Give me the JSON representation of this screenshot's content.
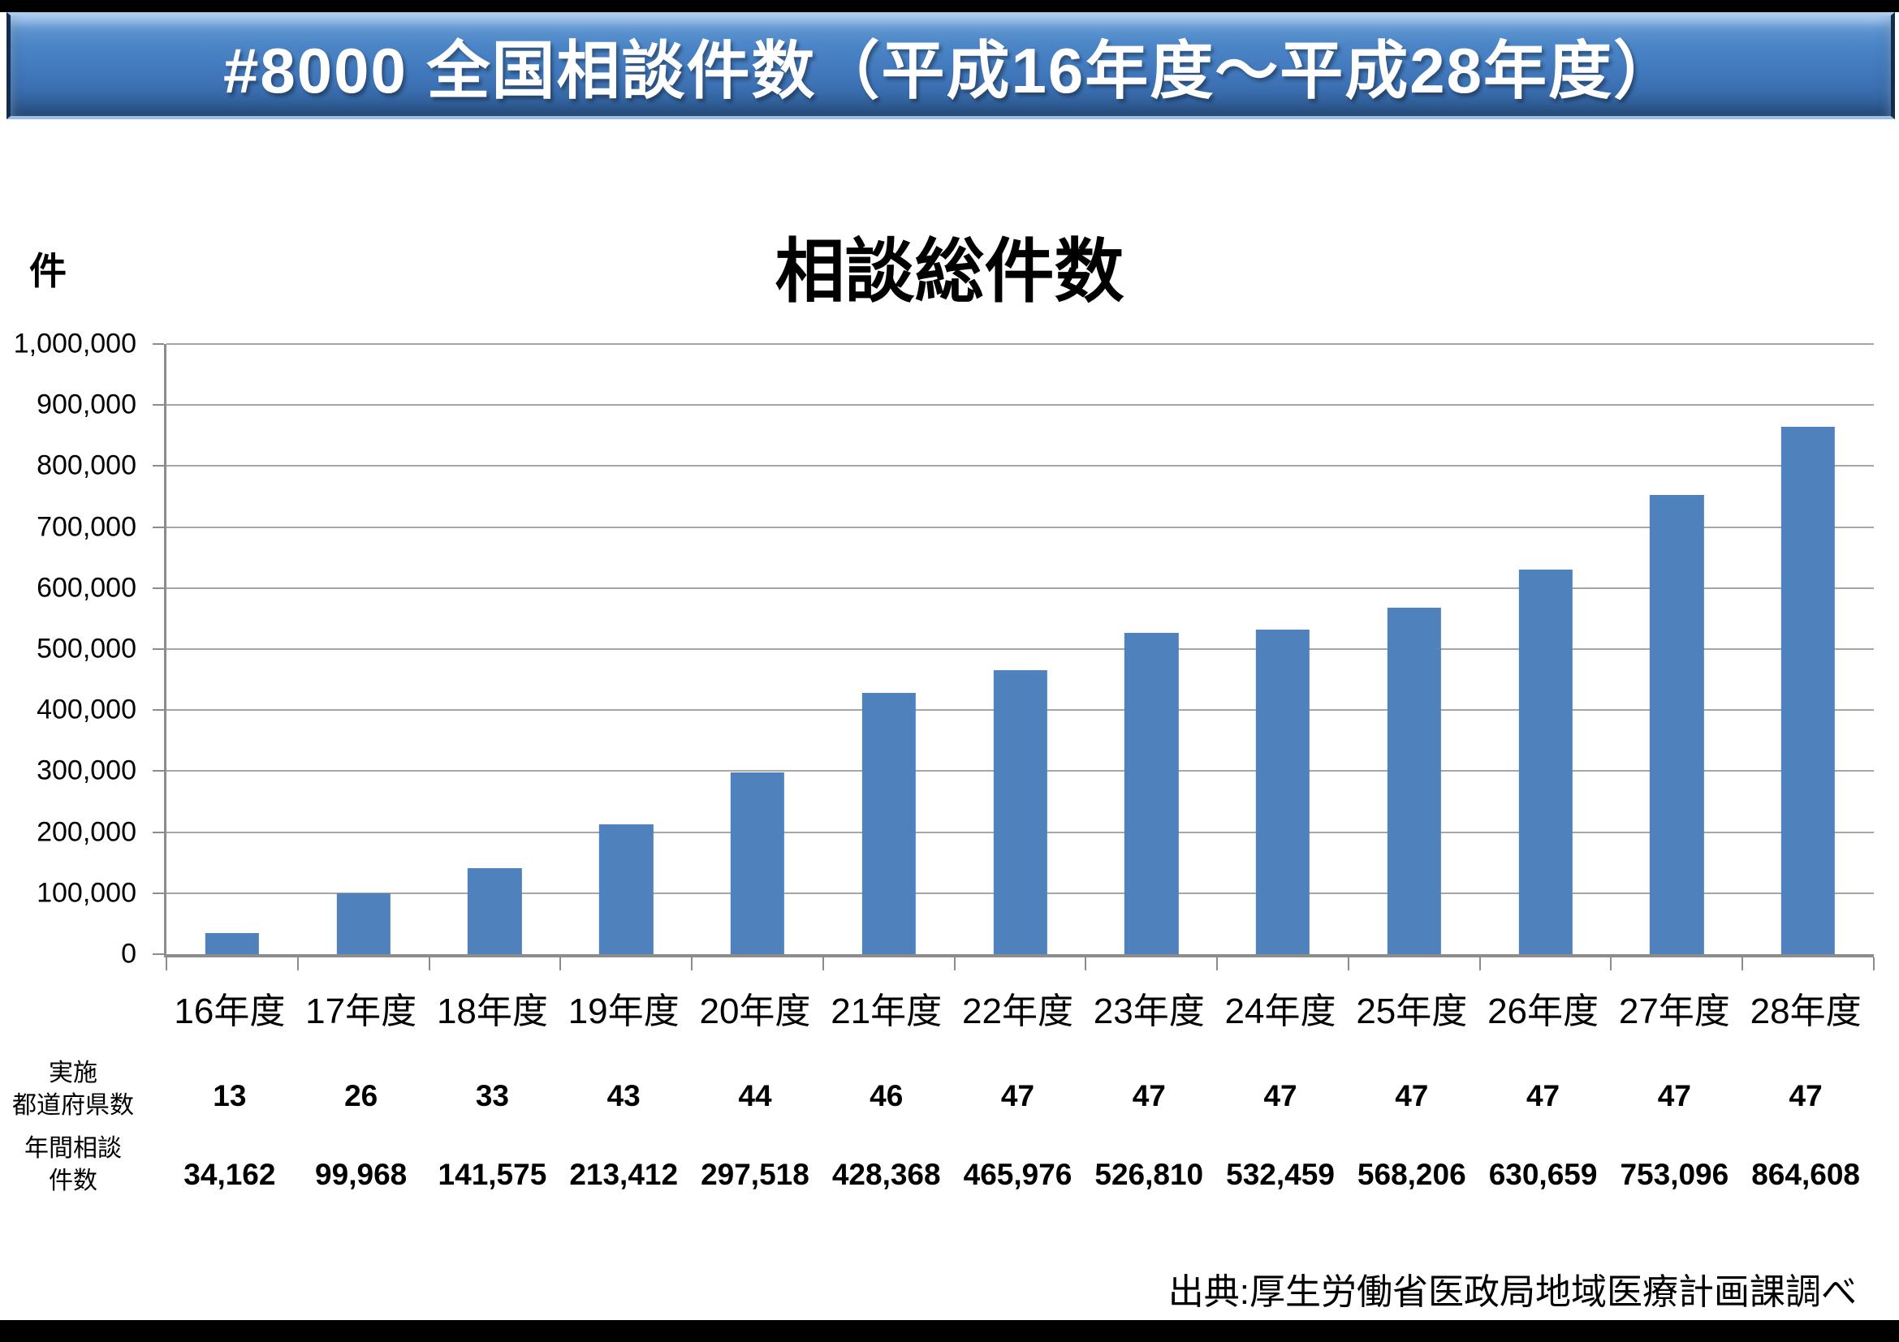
{
  "banner": {
    "title": "#8000 全国相談件数（平成16年度～平成28年度）"
  },
  "chart": {
    "unit_label": "件",
    "title": "相談総件数"
  },
  "chart_data": {
    "type": "bar",
    "title": "相談総件数",
    "categories": [
      "16年度",
      "17年度",
      "18年度",
      "19年度",
      "20年度",
      "21年度",
      "22年度",
      "23年度",
      "24年度",
      "25年度",
      "26年度",
      "27年度",
      "28年度"
    ],
    "values": [
      34162,
      99968,
      141575,
      213412,
      297518,
      428368,
      465976,
      526810,
      532459,
      568206,
      630659,
      753096,
      864608
    ],
    "xlabel": "",
    "ylabel": "件",
    "ylim": [
      0,
      1000000
    ],
    "y_tick_step": 100000,
    "y_tick_labels": [
      "1,000,000",
      "900,000",
      "800,000",
      "700,000",
      "600,000",
      "500,000",
      "400,000",
      "300,000",
      "200,000",
      "100,000",
      "0"
    ],
    "grid": true,
    "legend": "none",
    "bar_color": "#4F81BD",
    "gridline_color": "#a6a6a6",
    "axis_color": "#8c8c8c"
  },
  "table": {
    "rows": [
      {
        "header_lines": [
          "実施",
          "都道府県数"
        ],
        "values": [
          "13",
          "26",
          "33",
          "43",
          "44",
          "46",
          "47",
          "47",
          "47",
          "47",
          "47",
          "47",
          "47"
        ]
      },
      {
        "header_lines": [
          "年間相談",
          "件数"
        ],
        "values": [
          "34,162",
          "99,968",
          "141,575",
          "213,412",
          "297,518",
          "428,368",
          "465,976",
          "526,810",
          "532,459",
          "568,206",
          "630,659",
          "753,096",
          "864,608"
        ]
      }
    ]
  },
  "source": "出典:厚生労働省医政局地域医療計画課調べ"
}
